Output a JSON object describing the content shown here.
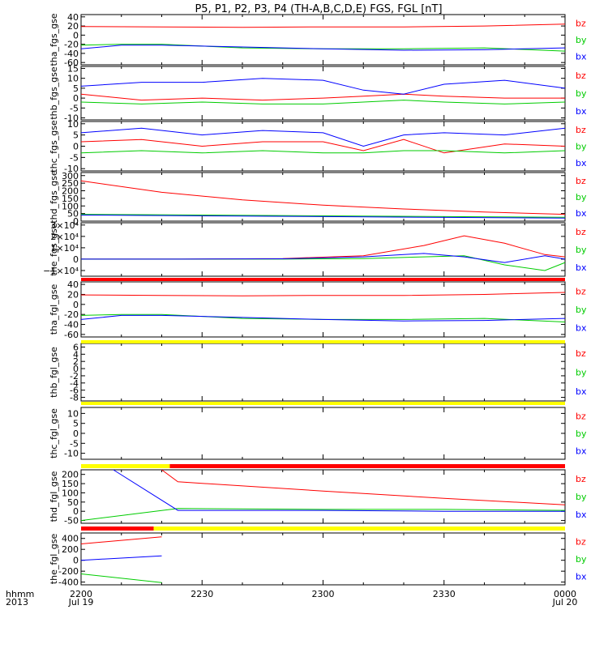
{
  "title": "P5, P1, P2, P3, P4 (TH-A,B,C,D,E) FGS, FGL [nT]",
  "colors": {
    "bx": "#0000ff",
    "by": "#00cc00",
    "bz": "#ff0000",
    "red_bar": "#ff0000",
    "yellow_bar": "#ffff00",
    "black": "#000000"
  },
  "legend": [
    "bz",
    "by",
    "bx"
  ],
  "time_axis": {
    "row_label": "hhmm",
    "year_label": "2013",
    "ticks": [
      {
        "t": 0,
        "hhmm": "2200",
        "date": "Jul 19"
      },
      {
        "t": 30,
        "hhmm": "2230",
        "date": ""
      },
      {
        "t": 60,
        "hhmm": "2300",
        "date": ""
      },
      {
        "t": 90,
        "hhmm": "2330",
        "date": ""
      },
      {
        "t": 120,
        "hhmm": "0000",
        "date": "Jul 20"
      }
    ]
  },
  "chart_data": [
    {
      "type": "line",
      "ylabel": "tha_fgs_gse",
      "ylim": [
        -65,
        45
      ],
      "yticks": [
        {
          "v": 40,
          "label": "40"
        },
        {
          "v": 20,
          "label": "20"
        },
        {
          "v": 0,
          "label": "0"
        },
        {
          "v": -20,
          "label": "-20"
        },
        {
          "v": -40,
          "label": "-40"
        },
        {
          "v": -60,
          "label": "-60"
        }
      ],
      "series": [
        {
          "name": "bz",
          "x": [
            0,
            20,
            40,
            60,
            80,
            100,
            120
          ],
          "values": [
            19,
            18,
            17,
            18,
            18,
            20,
            24
          ]
        },
        {
          "name": "by",
          "x": [
            0,
            10,
            20,
            40,
            60,
            80,
            100,
            120
          ],
          "values": [
            -22,
            -20,
            -20,
            -28,
            -30,
            -30,
            -28,
            -35
          ]
        },
        {
          "name": "bx",
          "x": [
            0,
            10,
            20,
            40,
            60,
            80,
            100,
            120
          ],
          "values": [
            -30,
            -22,
            -22,
            -26,
            -30,
            -33,
            -32,
            -28
          ]
        }
      ]
    },
    {
      "type": "line",
      "ylabel": "thb_fgs_gse",
      "ylim": [
        -11,
        16
      ],
      "yticks": [
        {
          "v": 15,
          "label": "15"
        },
        {
          "v": 10,
          "label": "10"
        },
        {
          "v": 5,
          "label": "5"
        },
        {
          "v": 0,
          "label": "0"
        },
        {
          "v": -5,
          "label": "-5"
        },
        {
          "v": -10,
          "label": "-10"
        }
      ],
      "series": [
        {
          "name": "bz",
          "x": [
            0,
            15,
            30,
            45,
            60,
            70,
            80,
            90,
            105,
            120
          ],
          "values": [
            2,
            -1,
            0,
            -1,
            0,
            1,
            2,
            1,
            0,
            0
          ]
        },
        {
          "name": "by",
          "x": [
            0,
            15,
            30,
            45,
            60,
            70,
            80,
            90,
            105,
            120
          ],
          "values": [
            -2,
            -3,
            -2,
            -3,
            -3,
            -2,
            -1,
            -2,
            -3,
            -2
          ]
        },
        {
          "name": "bx",
          "x": [
            0,
            15,
            30,
            45,
            60,
            70,
            80,
            90,
            105,
            120
          ],
          "values": [
            6,
            8,
            8,
            10,
            9,
            4,
            2,
            7,
            9,
            5
          ]
        }
      ]
    },
    {
      "type": "line",
      "ylabel": "thc_fgs_gse",
      "ylim": [
        -11,
        11
      ],
      "yticks": [
        {
          "v": 10,
          "label": "10"
        },
        {
          "v": 5,
          "label": "5"
        },
        {
          "v": 0,
          "label": "0"
        },
        {
          "v": -5,
          "label": "-5"
        },
        {
          "v": -10,
          "label": "-10"
        }
      ],
      "series": [
        {
          "name": "bz",
          "x": [
            0,
            15,
            30,
            45,
            60,
            70,
            80,
            90,
            105,
            120
          ],
          "values": [
            2,
            3,
            0,
            2,
            2,
            -2,
            3,
            -3,
            1,
            0
          ]
        },
        {
          "name": "by",
          "x": [
            0,
            15,
            30,
            45,
            60,
            70,
            80,
            90,
            105,
            120
          ],
          "values": [
            -3,
            -2,
            -3,
            -2,
            -3,
            -3,
            -2,
            -2,
            -3,
            -2
          ]
        },
        {
          "name": "bx",
          "x": [
            0,
            15,
            30,
            45,
            60,
            70,
            80,
            90,
            105,
            120
          ],
          "values": [
            6,
            8,
            5,
            7,
            6,
            0,
            5,
            6,
            5,
            8
          ]
        }
      ]
    },
    {
      "type": "line",
      "ylabel": "thd_fgs_gse",
      "ylim": [
        0,
        320
      ],
      "yticks": [
        {
          "v": 300,
          "label": "300"
        },
        {
          "v": 250,
          "label": "250"
        },
        {
          "v": 200,
          "label": "200"
        },
        {
          "v": 150,
          "label": "150"
        },
        {
          "v": 100,
          "label": "100"
        },
        {
          "v": 50,
          "label": "50"
        },
        {
          "v": 0,
          "label": "0"
        }
      ],
      "series": [
        {
          "name": "bz",
          "x": [
            0,
            20,
            40,
            60,
            80,
            100,
            120
          ],
          "values": [
            265,
            190,
            140,
            105,
            80,
            60,
            45
          ]
        },
        {
          "name": "by",
          "x": [
            0,
            120
          ],
          "values": [
            45,
            25
          ]
        },
        {
          "name": "bx",
          "x": [
            0,
            120
          ],
          "values": [
            40,
            20
          ]
        }
      ]
    },
    {
      "type": "line",
      "ylabel": "the_fgs_gse",
      "ylim": [
        -15000,
        32000
      ],
      "yticks": [
        {
          "v": 30000,
          "label": "3×10⁴"
        },
        {
          "v": 20000,
          "label": "2×10⁴"
        },
        {
          "v": 10000,
          "label": "1×10⁴"
        },
        {
          "v": 0,
          "label": "0"
        },
        {
          "v": -10000,
          "label": "−1×10⁴"
        }
      ],
      "series": [
        {
          "name": "bz",
          "x": [
            0,
            25,
            50,
            70,
            85,
            95,
            105,
            115,
            120
          ],
          "values": [
            0,
            0,
            500,
            3000,
            12000,
            20500,
            14000,
            4000,
            2000
          ]
        },
        {
          "name": "by",
          "x": [
            0,
            25,
            50,
            70,
            85,
            95,
            105,
            115,
            120
          ],
          "values": [
            0,
            0,
            0,
            500,
            2000,
            3000,
            -5000,
            -10000,
            -3000
          ]
        },
        {
          "name": "bx",
          "x": [
            0,
            25,
            50,
            70,
            85,
            95,
            105,
            115,
            120
          ],
          "values": [
            0,
            0,
            300,
            2000,
            5000,
            2000,
            -3000,
            3000,
            0
          ]
        }
      ]
    },
    {
      "type": "line",
      "ylabel": "tha_fgl_gse",
      "ylim": [
        -65,
        45
      ],
      "yticks": [
        {
          "v": 40,
          "label": "40"
        },
        {
          "v": 20,
          "label": "20"
        },
        {
          "v": 0,
          "label": "0"
        },
        {
          "v": -20,
          "label": "-20"
        },
        {
          "v": -40,
          "label": "-40"
        },
        {
          "v": -60,
          "label": "-60"
        }
      ],
      "series": [
        {
          "name": "bz",
          "x": [
            0,
            20,
            40,
            60,
            80,
            100,
            120
          ],
          "values": [
            19,
            18,
            17,
            18,
            18,
            20,
            24
          ]
        },
        {
          "name": "by",
          "x": [
            0,
            10,
            20,
            40,
            60,
            80,
            100,
            120
          ],
          "values": [
            -22,
            -20,
            -20,
            -28,
            -30,
            -30,
            -28,
            -35
          ]
        },
        {
          "name": "bx",
          "x": [
            0,
            10,
            20,
            40,
            60,
            80,
            100,
            120
          ],
          "values": [
            -30,
            -22,
            -22,
            -26,
            -30,
            -33,
            -32,
            -28
          ]
        }
      ]
    },
    {
      "type": "line",
      "ylabel": "thb_fgl_gse",
      "ylim": [
        -9,
        7
      ],
      "yticks": [
        {
          "v": 6,
          "label": "6"
        },
        {
          "v": 4,
          "label": "4"
        },
        {
          "v": 2,
          "label": "2"
        },
        {
          "v": 0,
          "label": "0"
        },
        {
          "v": -2,
          "label": "-2"
        },
        {
          "v": -4,
          "label": "-4"
        },
        {
          "v": -6,
          "label": "-6"
        },
        {
          "v": -8,
          "label": "-8"
        }
      ],
      "series": []
    },
    {
      "type": "line",
      "ylabel": "thc_fgl_gse",
      "ylim": [
        -13,
        13
      ],
      "yticks": [
        {
          "v": 10,
          "label": "10"
        },
        {
          "v": 5,
          "label": "5"
        },
        {
          "v": 0,
          "label": "0"
        },
        {
          "v": -5,
          "label": "-5"
        },
        {
          "v": -10,
          "label": "-10"
        }
      ],
      "series": []
    },
    {
      "type": "line",
      "ylabel": "thd_fgl_gse",
      "ylim": [
        -65,
        225
      ],
      "yticks": [
        {
          "v": 200,
          "label": "200"
        },
        {
          "v": 150,
          "label": "150"
        },
        {
          "v": 100,
          "label": "100"
        },
        {
          "v": 50,
          "label": "50"
        },
        {
          "v": 0,
          "label": "0"
        },
        {
          "v": -50,
          "label": "-50"
        }
      ],
      "series": [
        {
          "name": "bz",
          "x": [
            20,
            24,
            60,
            90,
            120
          ],
          "values": [
            225,
            160,
            110,
            70,
            35
          ]
        },
        {
          "name": "by",
          "x": [
            0,
            24,
            60,
            90,
            120
          ],
          "values": [
            -50,
            15,
            10,
            10,
            5
          ]
        },
        {
          "name": "bx",
          "x": [
            8,
            24,
            60,
            90,
            120
          ],
          "values": [
            225,
            5,
            5,
            0,
            0
          ]
        }
      ]
    },
    {
      "type": "line",
      "ylabel": "the_fgl_gse",
      "ylim": [
        -450,
        500
      ],
      "yticks": [
        {
          "v": 400,
          "label": "400"
        },
        {
          "v": 200,
          "label": "200"
        },
        {
          "v": 0,
          "label": "0"
        },
        {
          "v": -200,
          "label": "-200"
        },
        {
          "v": -400,
          "label": "-400"
        }
      ],
      "series": [
        {
          "name": "bz",
          "x": [
            0,
            20
          ],
          "values": [
            300,
            430
          ]
        },
        {
          "name": "by",
          "x": [
            0,
            20
          ],
          "values": [
            -250,
            -410
          ]
        },
        {
          "name": "bx",
          "x": [
            0,
            20
          ],
          "values": [
            0,
            80
          ]
        }
      ]
    }
  ],
  "bars": [
    {
      "after_panel": 4,
      "segments": [
        {
          "from": 0,
          "to": 120,
          "color": "red"
        }
      ]
    },
    {
      "after_panel": 5,
      "segments": [
        {
          "from": 0,
          "to": 120,
          "color": "yellow"
        }
      ]
    },
    {
      "after_panel": 6,
      "segments": [
        {
          "from": 0,
          "to": 120,
          "color": "yellow"
        }
      ]
    },
    {
      "after_panel": 7,
      "segments": [
        {
          "from": 0,
          "to": 22,
          "color": "yellow"
        },
        {
          "from": 22,
          "to": 120,
          "color": "red"
        }
      ]
    },
    {
      "after_panel": 8,
      "segments": [
        {
          "from": 0,
          "to": 18,
          "color": "red"
        },
        {
          "from": 18,
          "to": 120,
          "color": "yellow"
        }
      ]
    }
  ]
}
